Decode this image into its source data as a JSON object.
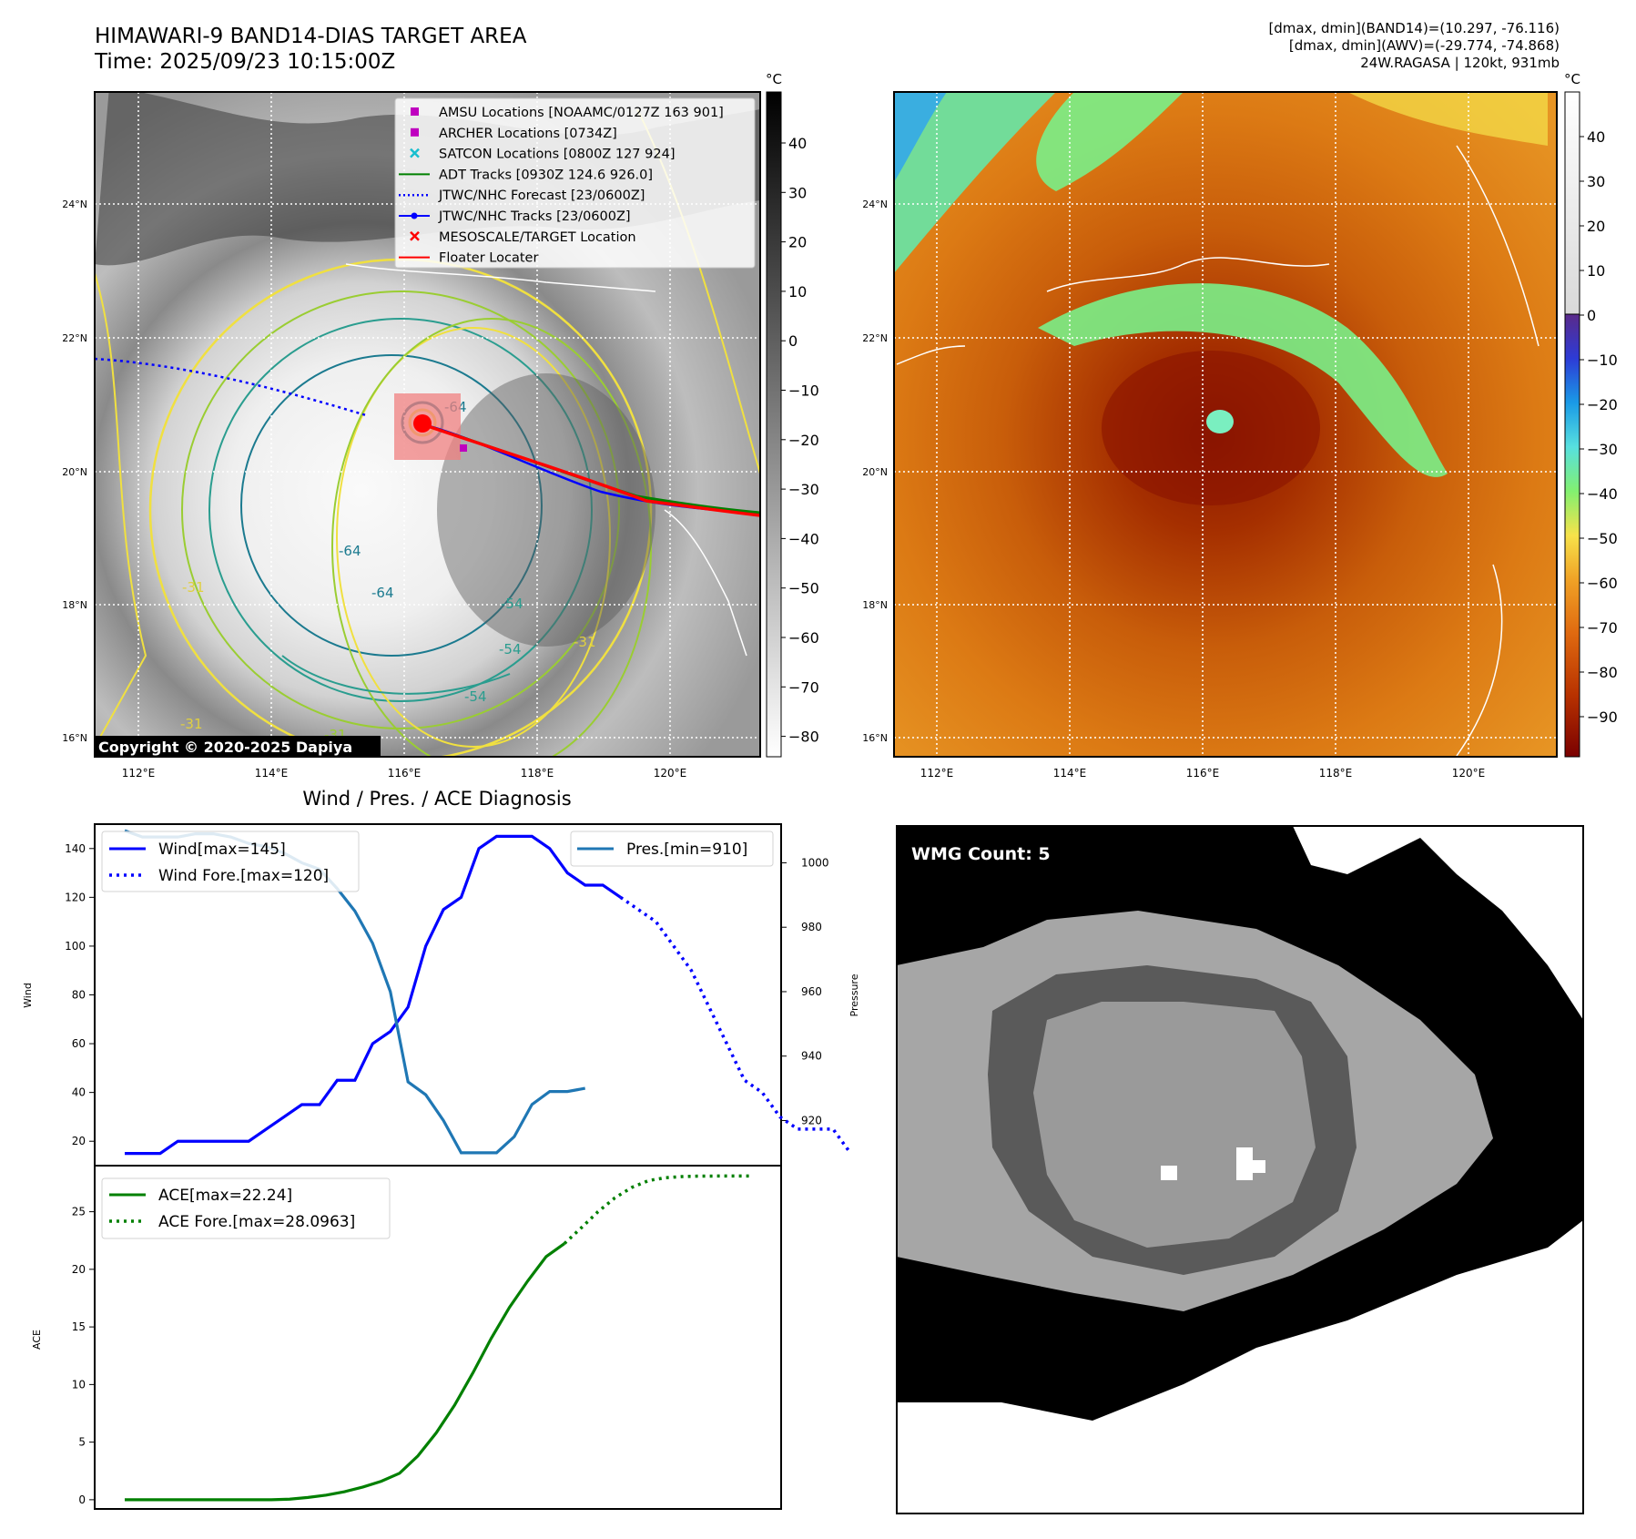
{
  "header": {
    "title": "HIMAWARI-9 BAND14-DIAS TARGET AREA",
    "time": "Time: 2025/09/23 10:15:00Z",
    "info_lines": [
      "[dmax, dmin](BAND14)=(10.297, -76.116)",
      "[dmax, dmin](AWV)=(-29.774, -74.868)",
      "24W.RAGASA | 120kt, 931mb"
    ]
  },
  "map_axes": {
    "lat_ticks": [
      "24°N",
      "22°N",
      "20°N",
      "18°N",
      "16°N"
    ],
    "lon_ticks": [
      "112°E",
      "114°E",
      "116°E",
      "118°E",
      "120°E"
    ]
  },
  "ir_panel": {
    "colorbar_unit": "°C",
    "colorbar_ticks": [
      "40",
      "30",
      "20",
      "10",
      "0",
      "−10",
      "−20",
      "−30",
      "−40",
      "−50",
      "−60",
      "−70",
      "−80"
    ],
    "contour_labels": [
      "-64",
      "-64",
      "-64",
      "-54",
      "-54",
      "-54",
      "-31",
      "-31",
      "-31",
      "-31"
    ],
    "copyright": "Copyright © 2020-2025 Dapiya",
    "legend": [
      {
        "label": "AMSU Locations [NOAAMC/0127Z 163 901]",
        "color": "#bf00bf",
        "marker": "square"
      },
      {
        "label": "ARCHER Locations [0734Z]",
        "color": "#bf00bf",
        "marker": "square"
      },
      {
        "label": "SATCON Locations [0800Z 127 924]",
        "color": "#17becf",
        "marker": "x"
      },
      {
        "label": "ADT Tracks [0930Z 124.6 926.0]",
        "color": "#008000",
        "marker": "line"
      },
      {
        "label": "JTWC/NHC Forecast [23/0600Z]",
        "color": "#0000ff",
        "marker": "dotted"
      },
      {
        "label": "JTWC/NHC Tracks [23/0600Z]",
        "color": "#0000ff",
        "marker": "line-dot"
      },
      {
        "label": "MESOSCALE/TARGET Location",
        "color": "#ff0000",
        "marker": "x"
      },
      {
        "label": "Floater Locater",
        "color": "#ff0000",
        "marker": "line"
      }
    ]
  },
  "awv_panel": {
    "colorbar_unit": "°C",
    "colorbar_ticks": [
      "40",
      "30",
      "20",
      "10",
      "0",
      "−10",
      "−20",
      "−30",
      "−40",
      "−50",
      "−60",
      "−70",
      "−80",
      "−90"
    ]
  },
  "wmg_panel": {
    "label": "WMG Count: 5"
  },
  "chart_data": [
    {
      "type": "line",
      "title": "Wind / Pres. / ACE Diagnosis",
      "ylabel": "Wind",
      "ylabel_right": "Pressure",
      "ylim": [
        10,
        150
      ],
      "yticks": [
        20,
        40,
        60,
        80,
        100,
        120,
        140
      ],
      "ylim_right": [
        906,
        1012
      ],
      "yticks_right": [
        920,
        940,
        960,
        980,
        1000
      ],
      "legend_left": [
        "Wind[max=145]",
        "Wind Fore.[max=120]"
      ],
      "legend_right": [
        "Pres.[min=910]"
      ],
      "series": [
        {
          "name": "Wind[max=145]",
          "axis": "left",
          "color": "#0000ff",
          "style": "solid",
          "values": [
            15,
            15,
            15,
            20,
            20,
            20,
            20,
            20,
            25,
            30,
            35,
            35,
            45,
            45,
            60,
            65,
            75,
            100,
            115,
            120,
            140,
            145,
            145,
            145,
            140,
            130,
            125,
            125,
            120
          ]
        },
        {
          "name": "Wind Fore.[max=120]",
          "axis": "left",
          "color": "#0000ff",
          "style": "dotted",
          "values": [
            120,
            115,
            110,
            100,
            90,
            75,
            60,
            45,
            40,
            30,
            25,
            25,
            25,
            15
          ]
        },
        {
          "name": "Pres.[min=910]",
          "axis": "right",
          "color": "#1f77b4",
          "style": "solid",
          "values": [
            1010,
            1008,
            1008,
            1008,
            1009,
            1009,
            1008,
            1006,
            1005,
            1003,
            1000,
            998,
            992,
            985,
            975,
            960,
            932,
            928,
            920,
            910,
            910,
            910,
            915,
            925,
            929,
            929,
            930
          ]
        }
      ]
    },
    {
      "type": "line",
      "ylabel": "ACE",
      "ylim": [
        -0.8,
        29
      ],
      "yticks": [
        0,
        5,
        10,
        15,
        20,
        25
      ],
      "legend": [
        "ACE[max=22.24]",
        "ACE Fore.[max=28.0963]"
      ],
      "series": [
        {
          "name": "ACE[max=22.24]",
          "color": "#008000",
          "style": "solid",
          "values": [
            0,
            0,
            0,
            0,
            0,
            0,
            0,
            0,
            0,
            0.05,
            0.2,
            0.4,
            0.7,
            1.1,
            1.6,
            2.3,
            3.8,
            5.8,
            8.2,
            11.0,
            14.0,
            16.7,
            19.0,
            21.1,
            22.24
          ]
        },
        {
          "name": "ACE Fore.[max=28.0963]",
          "color": "#008000",
          "style": "dotted",
          "values": [
            22.24,
            23.6,
            25.0,
            26.2,
            27.1,
            27.7,
            27.95,
            28.05,
            28.09,
            28.0963,
            28.0963,
            28.0963
          ]
        }
      ]
    }
  ]
}
